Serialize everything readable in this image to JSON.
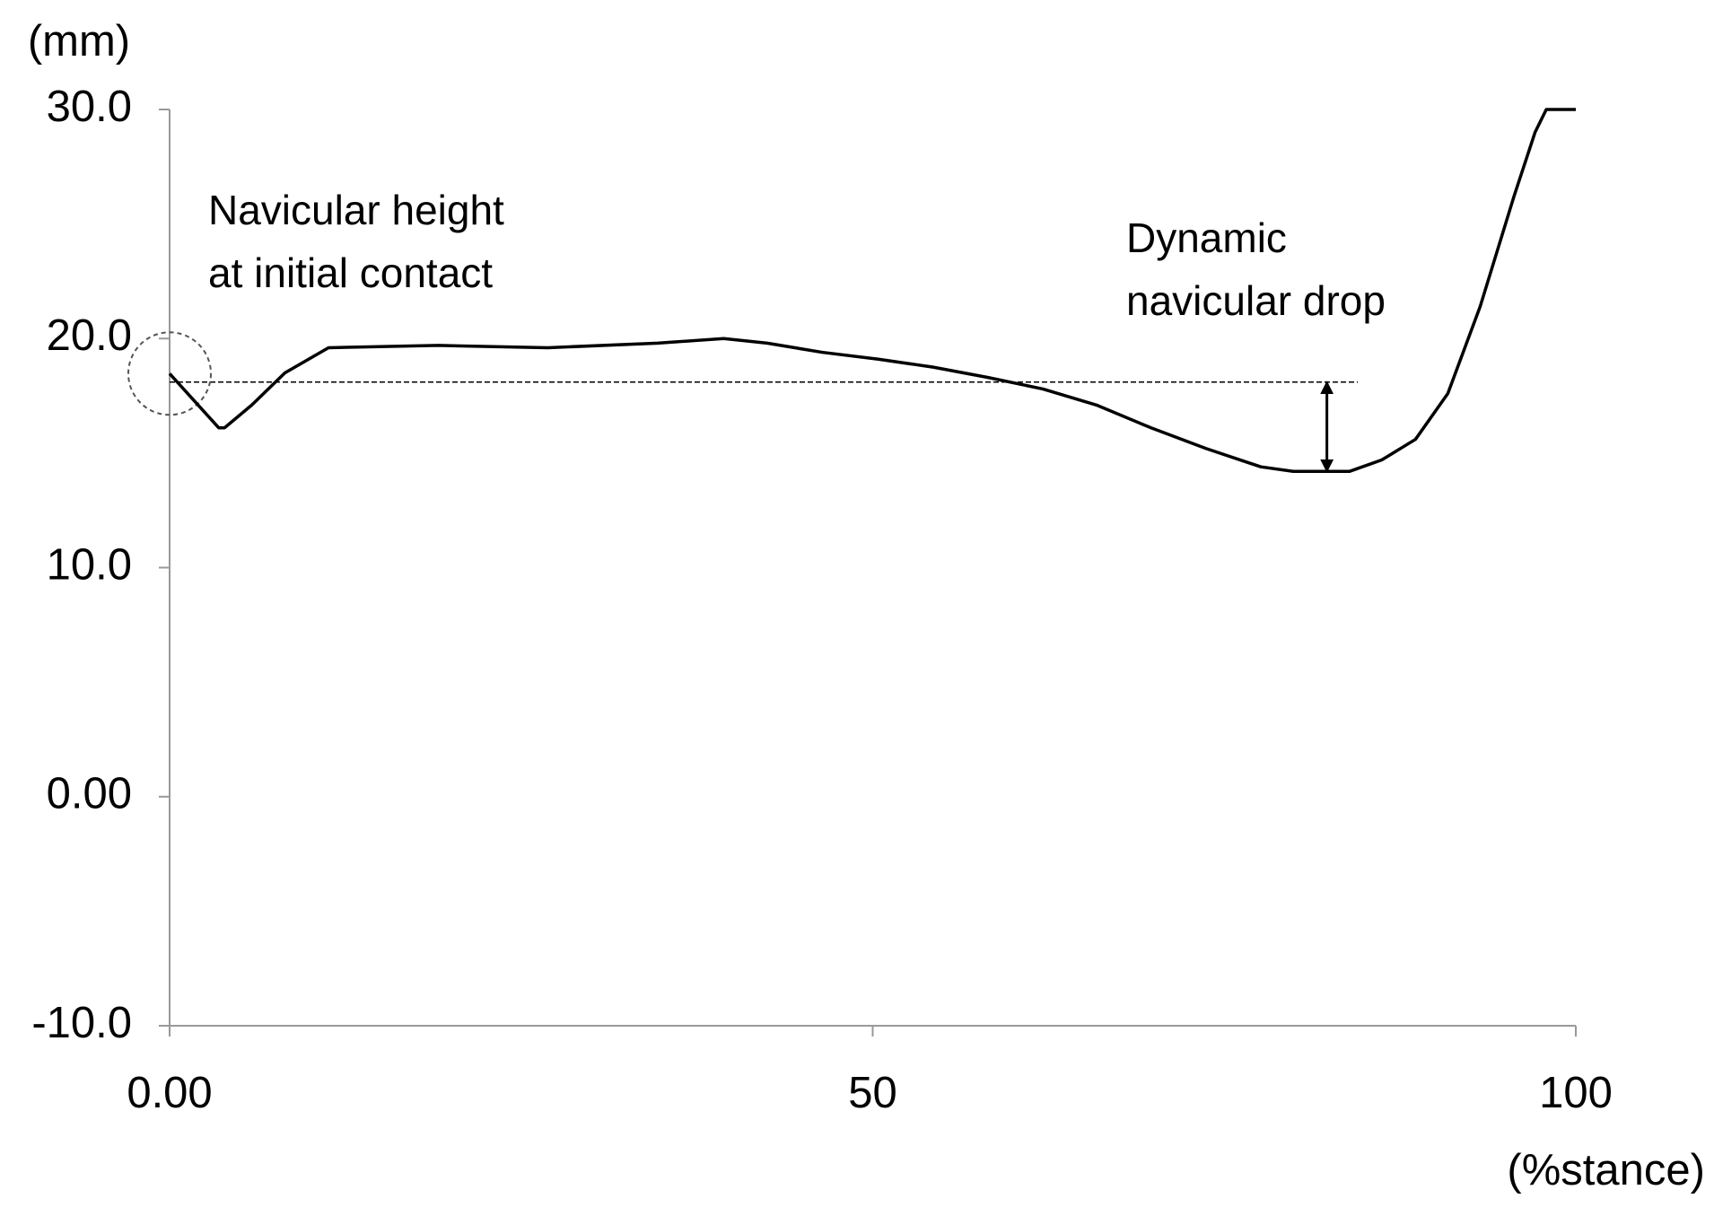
{
  "chart_data": {
    "type": "line",
    "y_label": "(mm)",
    "x_label": "(%stance)",
    "annotations": [
      [
        "Navicular height",
        "at initial contact"
      ],
      [
        "Dynamic",
        "navicular drop"
      ]
    ],
    "x": [
      0,
      3.5,
      3.9,
      5.85,
      8.2,
      11.3,
      19.1,
      26.9,
      34.7,
      39.4,
      42.5,
      46.4,
      50.4,
      54.3,
      58.2,
      62.1,
      65.9,
      69.8,
      73.7,
      77.6,
      79.9,
      83.9,
      86.2,
      88.6,
      90.9,
      93.2,
      95.6,
      97.1,
      97.9,
      100
    ],
    "values": [
      18.47,
      16.1,
      16.1,
      17.1,
      18.5,
      19.6,
      19.7,
      19.6,
      19.8,
      20.0,
      19.8,
      19.4,
      19.1,
      18.75,
      18.3,
      17.8,
      17.1,
      16.1,
      15.2,
      14.4,
      14.2,
      14.2,
      14.7,
      15.6,
      17.6,
      21.4,
      26.2,
      29.0,
      30.0,
      30.0
    ],
    "color": "#000000",
    "reference_line": {
      "x": [
        0,
        84.5
      ],
      "y": 18.1
    },
    "drop_arrow": {
      "x": 82.3,
      "y": [
        18.1,
        14.2
      ]
    },
    "initial_contact_marker": {
      "x": 0,
      "y": 18.47
    },
    "xlim": [
      0,
      100
    ],
    "xticks": [
      {
        "value": 0,
        "label": "0.00"
      },
      50,
      100
    ],
    "ylim": [
      -10,
      30
    ],
    "yticks": [
      {
        "value": -10,
        "label": "-10.0"
      },
      {
        "value": 0,
        "label": "0.00"
      },
      {
        "value": 10,
        "label": "10.0"
      },
      {
        "value": 20,
        "label": "20.0"
      },
      {
        "value": 30,
        "label": "30.0"
      }
    ],
    "grid": false
  }
}
